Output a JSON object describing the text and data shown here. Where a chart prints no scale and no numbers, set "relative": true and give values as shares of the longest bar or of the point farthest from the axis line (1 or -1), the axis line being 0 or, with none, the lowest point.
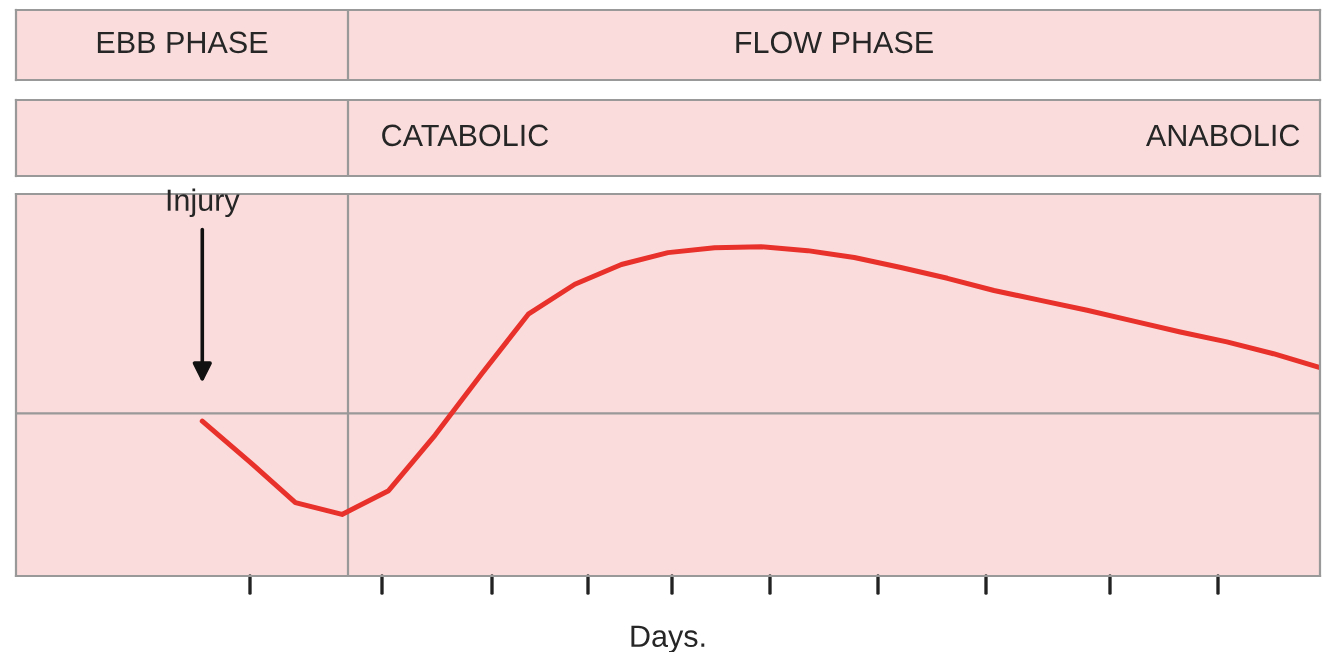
{
  "chart_data": {
    "type": "line",
    "relative": true,
    "xlabel": "Days.",
    "categories": [
      null,
      null,
      null,
      null,
      null,
      null,
      null,
      null,
      null,
      null,
      null,
      null,
      null,
      null,
      null,
      null,
      null,
      null,
      null,
      null,
      null,
      null,
      null,
      null,
      null,
      null,
      null,
      null,
      null
    ],
    "series": [
      {
        "color": "#e8312a",
        "values": [
          null,
          null,
          null,
          null,
          0.47,
          0.349,
          0.223,
          0.187,
          0.259,
          0.428,
          0.614,
          0.795,
          0.886,
          0.946,
          0.982,
          0.997,
          1.0,
          0.988,
          0.967,
          0.937,
          0.904,
          0.867,
          0.837,
          0.807,
          0.774,
          0.741,
          0.711,
          0.675,
          0.633
        ]
      }
    ],
    "ref_lines": [
      {
        "axis": "y",
        "value": 0.494,
        "color": "#999999"
      }
    ],
    "annotations": [
      "EBB PHASE",
      "FLOW PHASE",
      "CATABOLIC",
      "ANABOLIC",
      "Injury"
    ],
    "grid": false,
    "marker": "none",
    "line_style": "solid"
  }
}
